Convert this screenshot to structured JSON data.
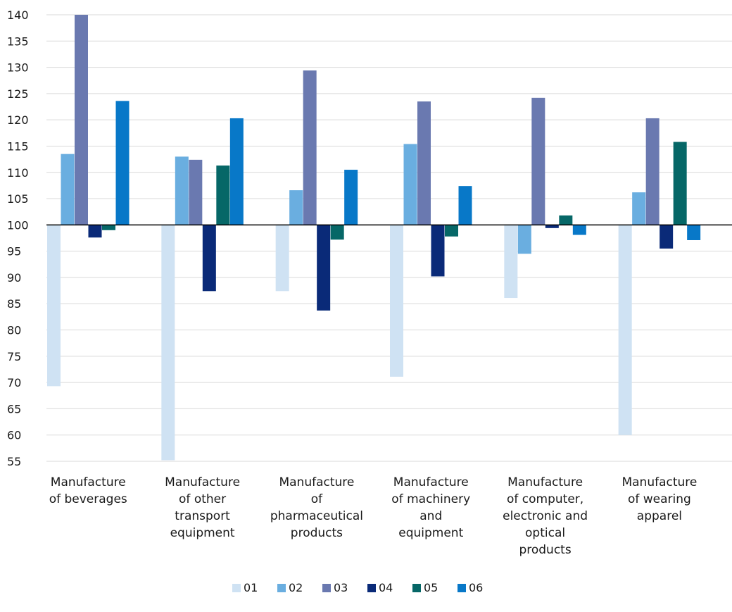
{
  "chart_data": {
    "type": "bar",
    "title": "",
    "xlabel": "",
    "ylabel": "",
    "ylim": [
      55,
      140
    ],
    "ytick_step": 5,
    "baseline": 100,
    "grid": true,
    "legend_position": "bottom",
    "categories": [
      [
        "Manufacture",
        "of beverages"
      ],
      [
        "Manufacture",
        "of other",
        "transport",
        "equipment"
      ],
      [
        "Manufacture",
        "of",
        "pharmaceutical",
        "products"
      ],
      [
        "Manufacture",
        "of machinery",
        "and",
        "equipment"
      ],
      [
        "Manufacture",
        "of computer,",
        "electronic and",
        "optical",
        "products"
      ],
      [
        "Manufacture",
        "of wearing",
        "apparel"
      ]
    ],
    "series": [
      {
        "name": "01",
        "color": "#cfe2f3",
        "values": [
          69.3,
          55.2,
          87.4,
          71.1,
          86.1,
          60.0
        ]
      },
      {
        "name": "02",
        "color": "#6aaee0",
        "values": [
          113.5,
          113.0,
          106.6,
          115.4,
          94.5,
          106.2
        ]
      },
      {
        "name": "03",
        "color": "#6a79b0",
        "values": [
          140.0,
          112.4,
          129.4,
          123.5,
          124.2,
          120.3
        ]
      },
      {
        "name": "04",
        "color": "#0a2a78",
        "values": [
          97.6,
          87.4,
          83.7,
          90.2,
          99.4,
          95.5
        ]
      },
      {
        "name": "05",
        "color": "#066767",
        "values": [
          99.0,
          111.3,
          97.2,
          97.8,
          101.8,
          115.8
        ]
      },
      {
        "name": "06",
        "color": "#0878c8",
        "values": [
          123.6,
          120.3,
          110.5,
          107.4,
          98.1,
          97.1
        ]
      }
    ]
  }
}
